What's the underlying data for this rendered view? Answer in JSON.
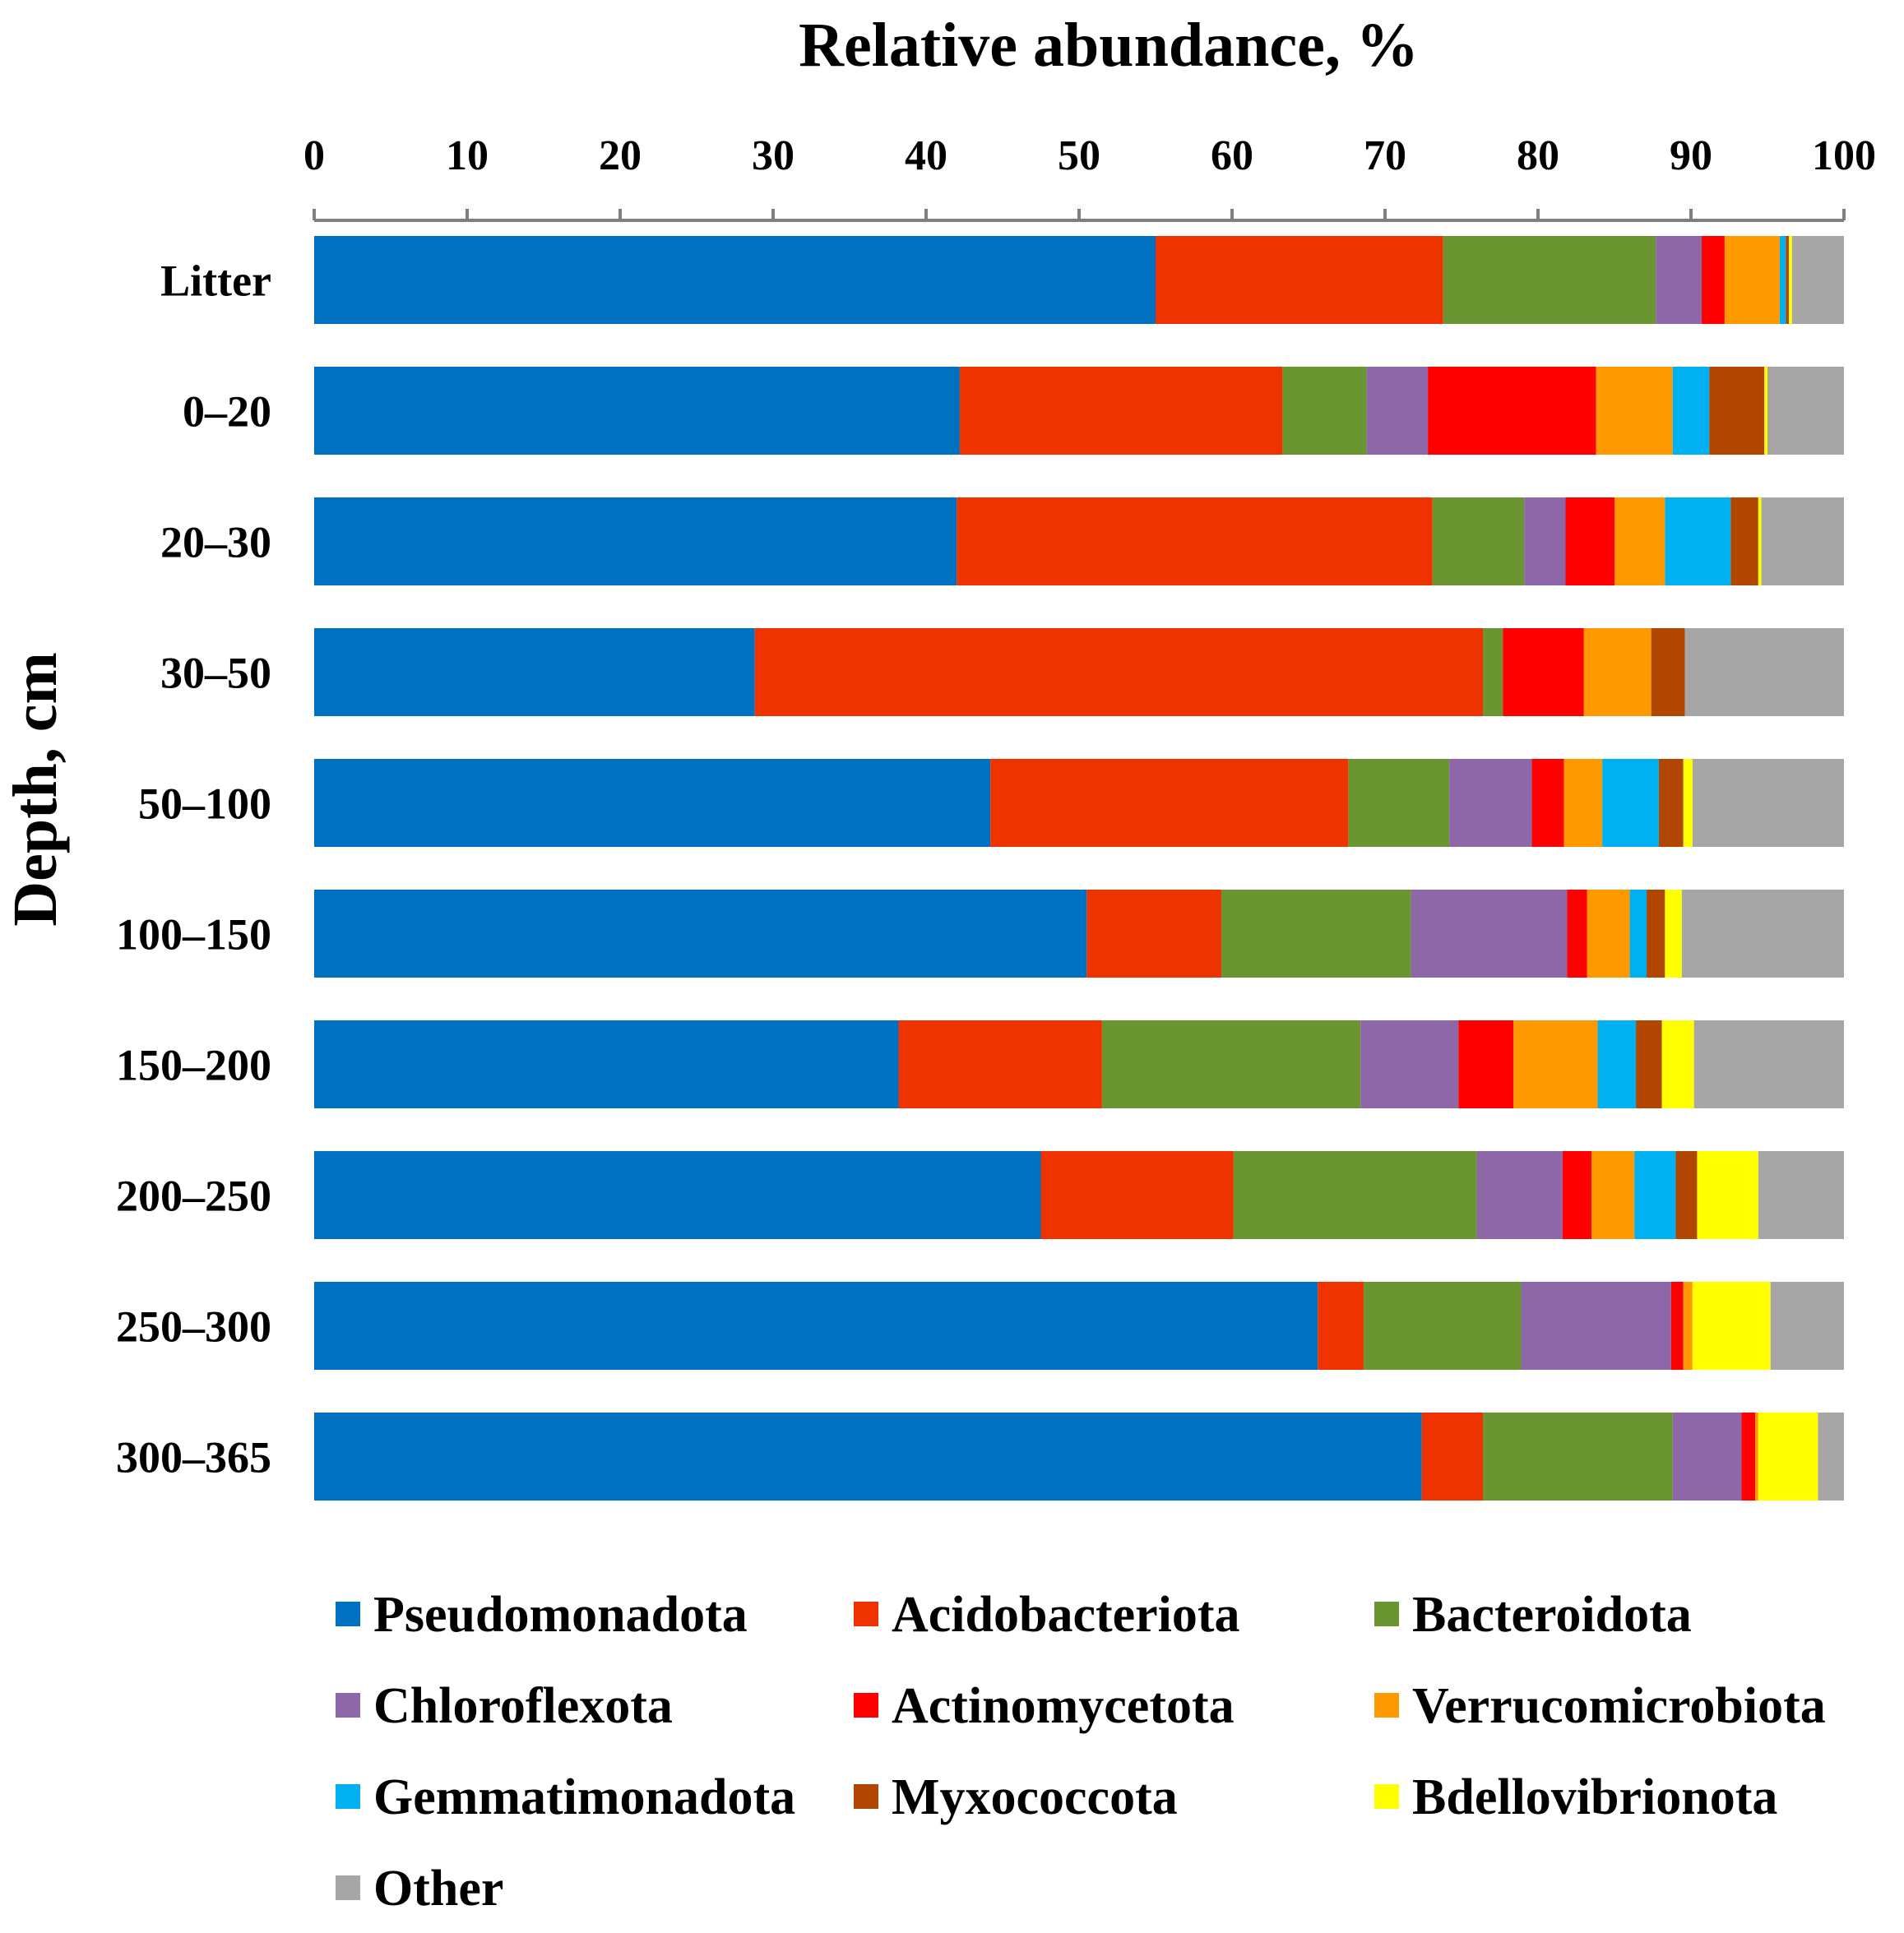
{
  "chart_data": {
    "type": "bar",
    "orientation": "horizontal",
    "stacked": true,
    "title": "",
    "xlabel": "Relative abundance, %",
    "ylabel": "Depth, cm",
    "xlim": [
      0,
      100
    ],
    "xticks": [
      0,
      10,
      20,
      30,
      40,
      50,
      60,
      70,
      80,
      90,
      100
    ],
    "x_axis_position": "top",
    "grid": false,
    "legend_position": "bottom",
    "categories": [
      "Litter",
      "0–20",
      "20–30",
      "30–50",
      "50–100",
      "100–150",
      "150–200",
      "200–250",
      "250–300",
      "300–365"
    ],
    "series": [
      {
        "name": "Pseudomonadota",
        "color": "#0070C0",
        "values": [
          55.0,
          42.2,
          42.0,
          28.8,
          44.2,
          50.5,
          38.2,
          47.5,
          65.6,
          72.4
        ]
      },
      {
        "name": "Acidobacteriota",
        "color": "#EE3300",
        "values": [
          18.8,
          21.1,
          31.1,
          47.6,
          23.4,
          8.8,
          13.3,
          12.6,
          3.0,
          4.0
        ]
      },
      {
        "name": "Bacteroidota",
        "color": "#6B9531",
        "values": [
          13.9,
          5.5,
          6.0,
          1.3,
          6.6,
          12.4,
          16.9,
          15.9,
          10.3,
          12.4
        ]
      },
      {
        "name": "Chloroflexota",
        "color": "#8E67A8",
        "values": [
          3.0,
          4.0,
          2.7,
          0.0,
          5.4,
          10.2,
          6.4,
          5.6,
          9.8,
          4.5
        ]
      },
      {
        "name": "Actinomycetota",
        "color": "#FF0000",
        "values": [
          1.5,
          11.0,
          3.2,
          5.3,
          2.1,
          1.3,
          3.6,
          1.9,
          0.8,
          0.9
        ]
      },
      {
        "name": "Verrucomicrobiota",
        "color": "#FF9900",
        "values": [
          3.6,
          5.0,
          3.3,
          4.4,
          2.5,
          2.8,
          5.5,
          2.8,
          0.6,
          0.2
        ]
      },
      {
        "name": "Gemmatimonadota",
        "color": "#00B0F0",
        "values": [
          0.4,
          2.4,
          4.3,
          0.0,
          3.7,
          1.1,
          2.5,
          2.7,
          0.0,
          0.0
        ]
      },
      {
        "name": "Myxococcota",
        "color": "#B04600",
        "values": [
          0.2,
          3.6,
          1.8,
          2.2,
          1.6,
          1.2,
          1.7,
          1.4,
          0.0,
          0.0
        ]
      },
      {
        "name": "Bdellovibrionota",
        "color": "#FFFF00",
        "values": [
          0.2,
          0.2,
          0.2,
          0.0,
          0.6,
          1.1,
          2.1,
          4.0,
          5.1,
          3.9
        ]
      },
      {
        "name": "Other",
        "color": "#A6A6A6",
        "values": [
          3.4,
          5.0,
          5.4,
          10.4,
          9.9,
          10.6,
          9.8,
          5.6,
          4.8,
          1.7
        ]
      }
    ]
  }
}
